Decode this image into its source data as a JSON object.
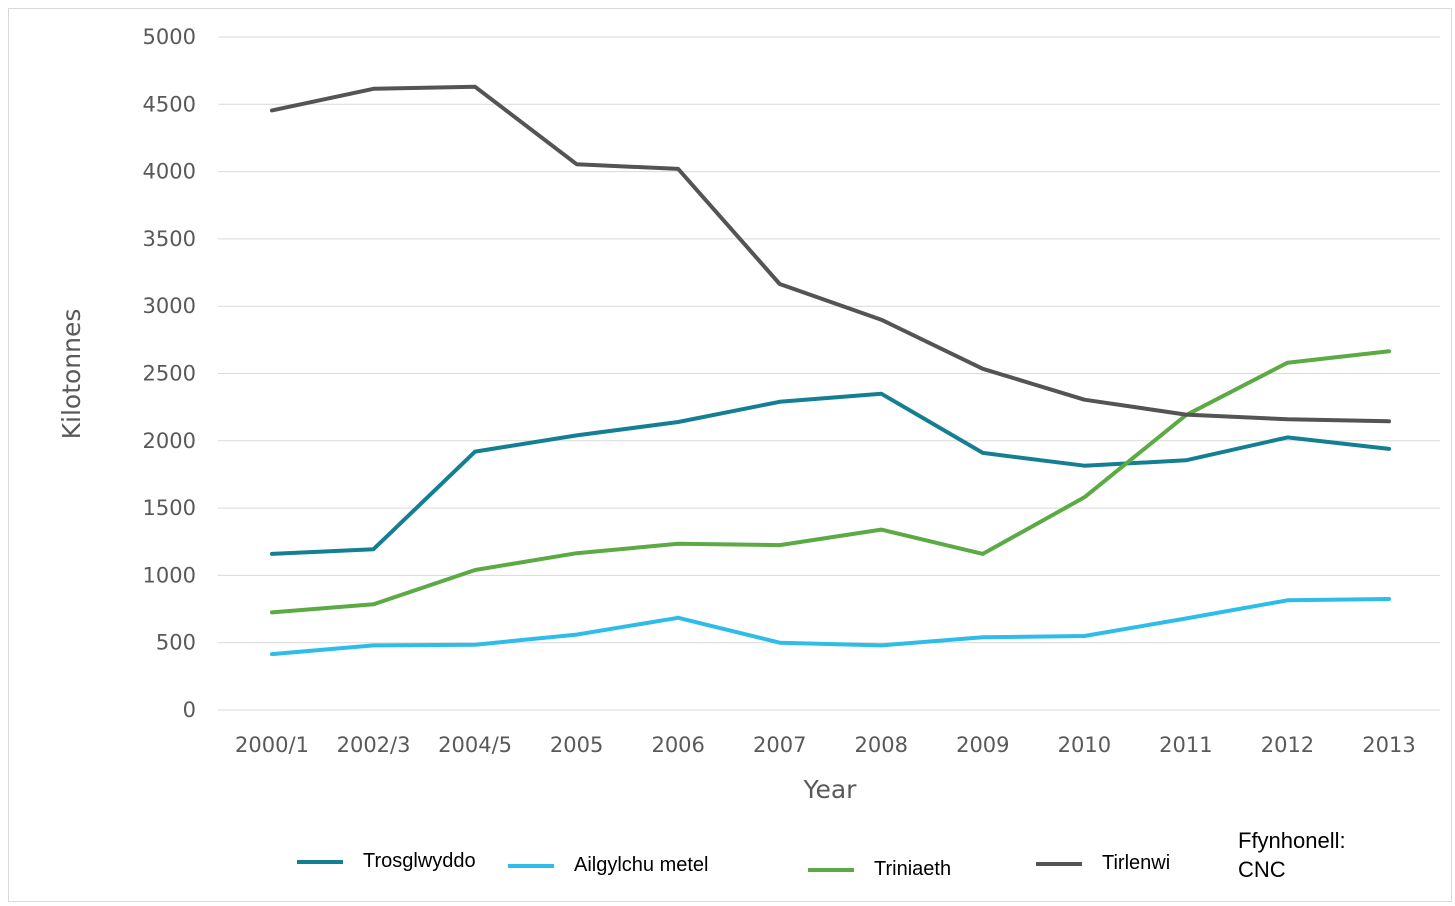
{
  "chart_data": {
    "type": "line",
    "categories": [
      "2000/1",
      "2002/3",
      "2004/5",
      "2005",
      "2006",
      "2007",
      "2008",
      "2009",
      "2010",
      "2011",
      "2012",
      "2013"
    ],
    "series": [
      {
        "name": "Trosglwyddo",
        "color": "#147F93",
        "values": [
          1160,
          1195,
          1920,
          2040,
          2140,
          2290,
          2350,
          1910,
          1815,
          1855,
          2025,
          1940
        ]
      },
      {
        "name": "Ailgylchu metel",
        "color": "#2EBCE8",
        "values": [
          415,
          480,
          485,
          560,
          685,
          500,
          480,
          540,
          550,
          680,
          815,
          825
        ]
      },
      {
        "name": "Triniaeth",
        "color": "#5BAA44",
        "values": [
          725,
          785,
          1040,
          1165,
          1235,
          1225,
          1340,
          1160,
          1580,
          2190,
          2580,
          2665
        ]
      },
      {
        "name": "Tirlenwi",
        "color": "#545454",
        "values": [
          4455,
          4615,
          4630,
          4055,
          4020,
          3165,
          2900,
          2535,
          2305,
          2195,
          2160,
          2145
        ]
      }
    ],
    "yticks": [
      "0",
      "500",
      "1000",
      "1500",
      "2000",
      "2500",
      "3000",
      "3500",
      "4000",
      "4500",
      "5000"
    ],
    "ylim": [
      0,
      5000
    ],
    "xlabel": "Year",
    "ylabel": "Kilotonnes",
    "grid": true,
    "legend_position": "bottom"
  },
  "source": {
    "line1": "Ffynhonell:",
    "line2": "CNC"
  }
}
